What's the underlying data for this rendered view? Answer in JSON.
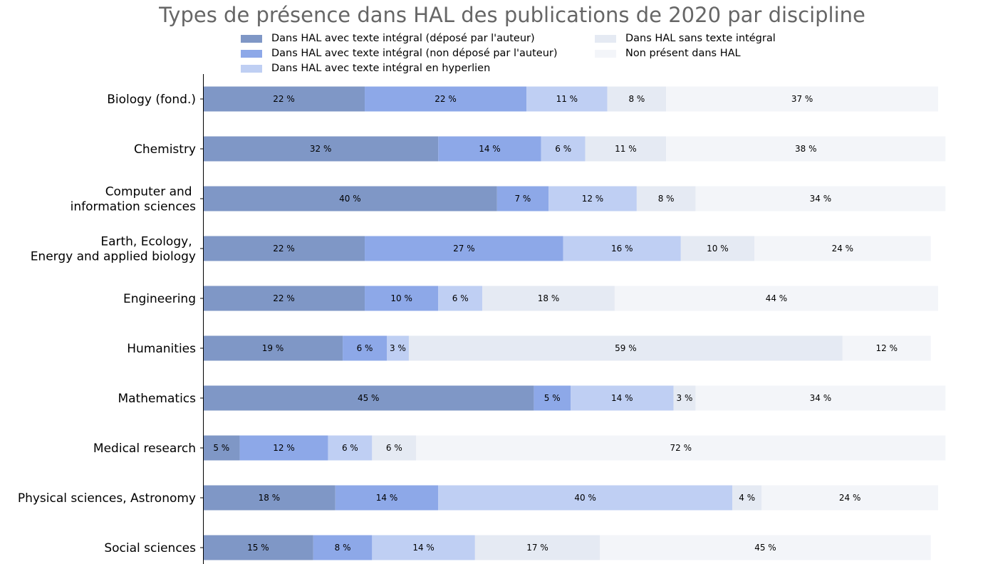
{
  "chart_data": {
    "type": "bar",
    "orientation": "horizontal",
    "stacked": true,
    "title": "Types de présence dans HAL des publications de 2020 par discipline",
    "categories": [
      "Biology (fond.)",
      "Chemistry",
      "Computer and \ninformation sciences",
      "Earth, Ecology, \nEnergy and applied biology",
      "Engineering",
      "Humanities",
      "Mathematics",
      "Medical research",
      "Physical sciences, Astronomy",
      "Social sciences"
    ],
    "series": [
      {
        "name": "Dans HAL avec texte intégral (déposé par l'auteur)",
        "color": "#7f97c6",
        "values": [
          22,
          32,
          40,
          22,
          22,
          19,
          45,
          5,
          18,
          15
        ],
        "labels": [
          "22 %",
          "32 %",
          "40 %",
          "22 %",
          "22 %",
          "19 %",
          "45 %",
          "5 %",
          "18 %",
          "15 %"
        ]
      },
      {
        "name": "Dans HAL avec texte intégral (non déposé par l'auteur)",
        "color": "#8da8e8",
        "values": [
          22,
          14,
          7,
          27,
          10,
          6,
          5,
          12,
          14,
          8
        ],
        "labels": [
          "22 %",
          "14 %",
          "7 %",
          "27 %",
          "10 %",
          "6 %",
          "5 %",
          "12 %",
          "14 %",
          "8 %"
        ]
      },
      {
        "name": "Dans HAL avec texte intégral en hyperlien",
        "color": "#bfcff3",
        "values": [
          11,
          6,
          12,
          16,
          6,
          3,
          14,
          6,
          40,
          14
        ],
        "labels": [
          "11 %",
          "6 %",
          "12 %",
          "16 %",
          "6 %",
          "3 %",
          "14 %",
          "6 %",
          "40 %",
          "14 %"
        ]
      },
      {
        "name": "Dans HAL sans texte intégral",
        "color": "#e5eaf3",
        "values": [
          8,
          11,
          8,
          10,
          18,
          59,
          3,
          6,
          4,
          17
        ],
        "labels": [
          "8 %",
          "11 %",
          "8 %",
          "10 %",
          "18 %",
          "59 %",
          "3 %",
          "6 %",
          "4 %",
          "17 %"
        ]
      },
      {
        "name": "Non présent dans HAL",
        "color": "#f3f5f9",
        "values": [
          37,
          38,
          34,
          24,
          44,
          12,
          34,
          72,
          24,
          45
        ],
        "labels": [
          "37 %",
          "38 %",
          "34 %",
          "24 %",
          "44 %",
          "12 %",
          "34 %",
          "72 %",
          "24 %",
          "45 %"
        ]
      }
    ],
    "xlim": [
      0,
      100
    ],
    "x_axis_visible": false,
    "grid": false,
    "legend_position": "top",
    "legend_columns": 2
  },
  "legend": {
    "items": [
      {
        "label": "Dans HAL avec texte intégral (déposé par l'auteur)",
        "color": "#7f97c6"
      },
      {
        "label": "Dans HAL avec texte intégral (non déposé par l'auteur)",
        "color": "#8da8e8"
      },
      {
        "label": "Dans HAL avec texte intégral en hyperlien",
        "color": "#bfcff3"
      },
      {
        "label": "Dans HAL sans texte intégral",
        "color": "#e5eaf3"
      },
      {
        "label": "Non présent dans HAL",
        "color": "#f3f5f9"
      }
    ]
  }
}
